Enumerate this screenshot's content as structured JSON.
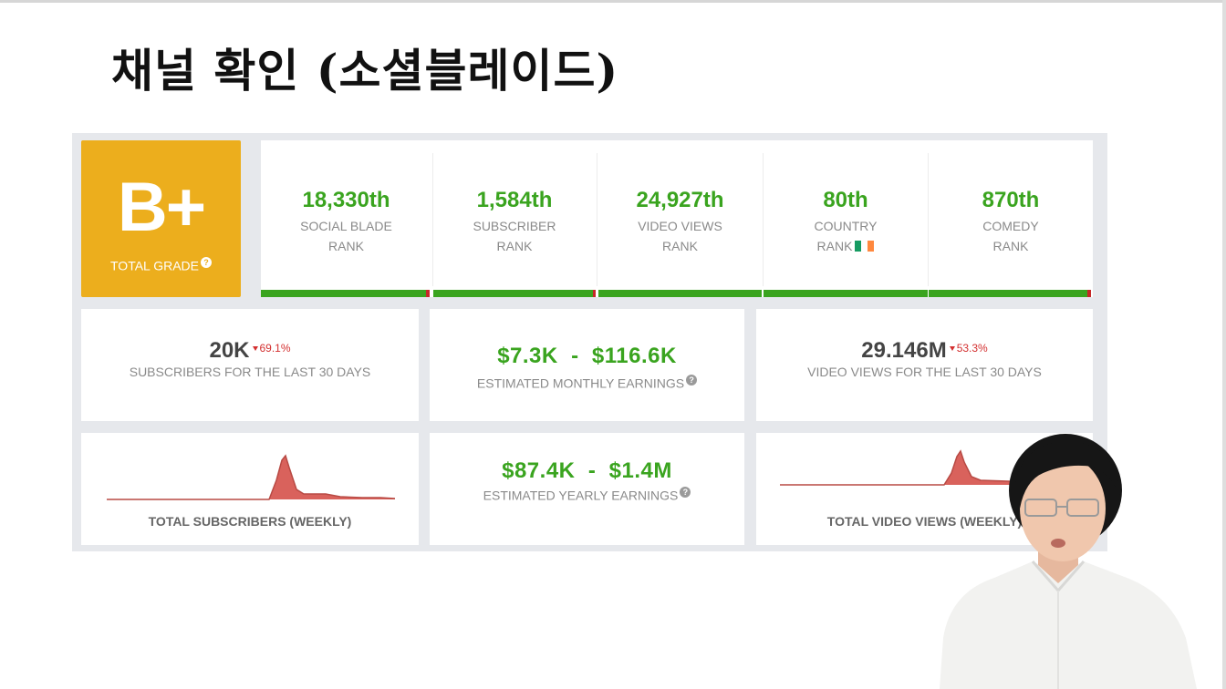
{
  "slide": {
    "title": "채널 확인 (소셜블레이드)"
  },
  "grade": {
    "letter": "B+",
    "label": "TOTAL GRADE",
    "help": "?"
  },
  "ranks": [
    {
      "value": "18,330th",
      "line1": "SOCIAL BLADE",
      "line2": "RANK"
    },
    {
      "value": "1,584th",
      "line1": "SUBSCRIBER",
      "line2": "RANK"
    },
    {
      "value": "24,927th",
      "line1": "VIDEO VIEWS",
      "line2": "RANK"
    },
    {
      "value": "80th",
      "line1": "COUNTRY",
      "line2": "RANK"
    },
    {
      "value": "870th",
      "line1": "COMEDY",
      "line2": "RANK"
    }
  ],
  "country_flag_colors": [
    "#169b62",
    "#ffffff",
    "#ff883e"
  ],
  "stats": {
    "subscribers_30d": {
      "value": "20K",
      "delta": "69.1%",
      "caption": "SUBSCRIBERS FOR THE LAST 30 DAYS"
    },
    "monthly_earnings": {
      "value": "$7.3K  -  $116.6K",
      "caption": "ESTIMATED MONTHLY EARNINGS",
      "help": "?"
    },
    "views_30d": {
      "value": "29.146M",
      "delta": "53.3%",
      "caption": "VIDEO VIEWS FOR THE LAST 30 DAYS"
    },
    "yearly_earnings": {
      "value": "$87.4K  -  $1.4M",
      "caption": "ESTIMATED YEARLY EARNINGS",
      "help": "?"
    }
  },
  "charts": {
    "subscribers": {
      "caption": "TOTAL SUBSCRIBERS (WEEKLY)"
    },
    "views": {
      "caption": "TOTAL VIDEO VIEWS (WEEKLY)"
    }
  },
  "colors": {
    "grade": "#ecae1d",
    "green": "#3aa41f",
    "red": "#d32f2f",
    "spark_fill": "#d9625c"
  }
}
